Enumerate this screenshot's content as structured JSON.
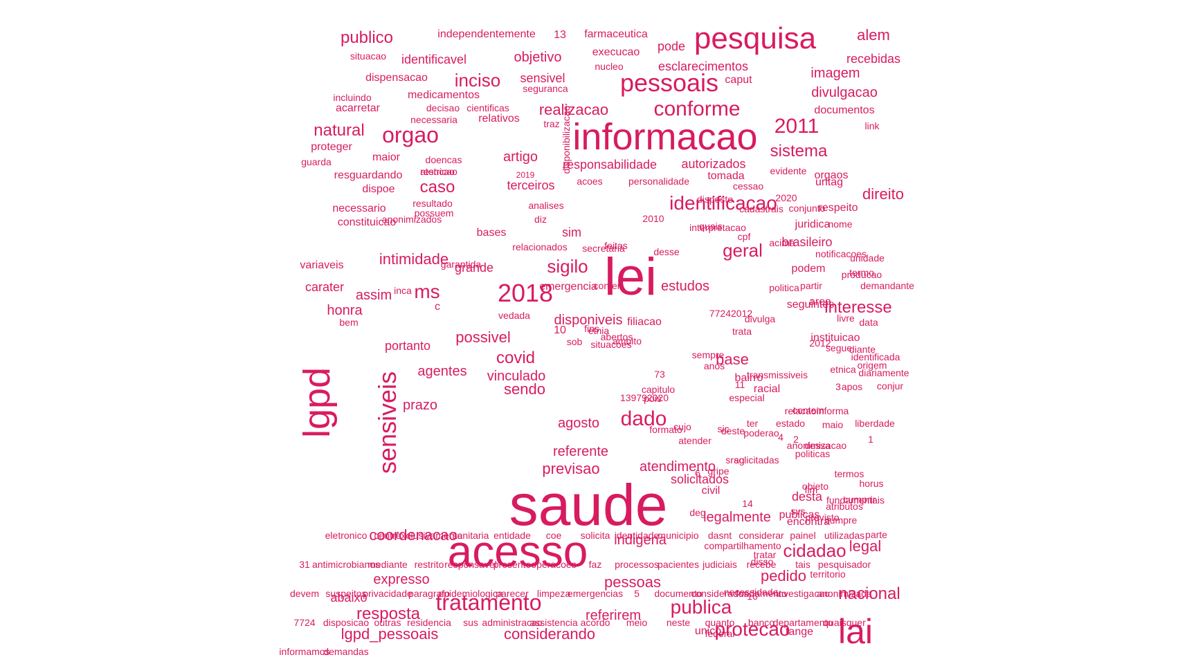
{
  "word_color": "#d81b60",
  "words": [
    "saude",
    "acesso",
    "lei",
    "informacao",
    "lai",
    "lgpd",
    "pesquisa",
    "pessoais",
    "sensiveis",
    "2018",
    "conforme",
    "2011",
    "orgao",
    "natural",
    "tratamento",
    "cidadao",
    "dado",
    "identificacao",
    "protecao",
    "publica",
    "resposta",
    "publico",
    "inciso",
    "geral",
    "sigilo",
    "ms",
    "intimidade",
    "interesse",
    "caso",
    "covid",
    "sistema",
    "direito",
    "nacional",
    "considerando",
    "lgpd_pessoais",
    "artigo",
    "alem",
    "legal",
    "base",
    "pedido",
    "realizacao",
    "agentes",
    "sendo",
    "prazo",
    "possivel",
    "atendimento",
    "coordenacao",
    "referirem",
    "previsao",
    "referente",
    "estudos",
    "honra",
    "assim",
    "disponiveis",
    "vinculado",
    "agosto",
    "pessoas",
    "indigena",
    "legalmente",
    "desta",
    "solicitados",
    "expresso",
    "abaixo",
    "portanto",
    "objetivo",
    "sensivel",
    "responsabilidade",
    "autorizados",
    "terceiros",
    "imagem",
    "divulgacao",
    "documentos",
    "recebidas",
    "identificavel",
    "execucao",
    "esclarecimentos",
    "caput",
    "independentemente",
    "farmaceutica",
    "13",
    "pode",
    "situacao",
    "dispensacao",
    "medicamentos",
    "nucleo",
    "seguranca",
    "incluindo",
    "acarretar",
    "decisao",
    "cientificas",
    "necessaria",
    "relativos",
    "traz",
    "disponibilizacao",
    "link",
    "proteger",
    "guarda",
    "maior",
    "doencas",
    "restricao",
    "atencao",
    "resguardando",
    "2019",
    "acoes",
    "personalidade",
    "tomada",
    "cessao",
    "evidente",
    "orgaos",
    "urltag",
    "dispoe",
    "resultado",
    "possuem",
    "analises",
    "disposto",
    "cadastrais",
    "2020",
    "respeito",
    "juridica",
    "conjunto",
    "necessario",
    "constituicao",
    "diz",
    "2010",
    "quais",
    "interpretacao",
    "nome",
    "acima",
    "anonimizados",
    "sim",
    "bases",
    "relacionados",
    "feitas",
    "secretaria",
    "desse",
    "cpf",
    "brasileiro",
    "notificacoes",
    "unidade",
    "producao",
    "variaveis",
    "garantida",
    "grande",
    "emergencia",
    "conter",
    "podem",
    "seguintes",
    "partir",
    "termo",
    "demandante",
    "carater",
    "bem",
    "inca",
    "c",
    "vedada",
    "77242012",
    "politica",
    "area",
    "2012",
    "instituicao",
    "divulga",
    "livre",
    "filiacao",
    "fins",
    "abertos",
    "data",
    "segue",
    "origem",
    "diariamente",
    "sob",
    "10",
    "etnia",
    "trata",
    "situacoes",
    "ambito",
    "transmissiveis",
    "73",
    "capitulo",
    "sempre",
    "diante",
    "identificada",
    "anos",
    "etnica",
    "3",
    "11",
    "apos",
    "contem",
    "relacaoinforma",
    "maio",
    "liberdade",
    "bairro",
    "racial",
    "conjur",
    "especial",
    "pois",
    "139792020",
    "poderao",
    "4",
    "formato",
    "estado",
    "1",
    "atender",
    "cujo",
    "deste",
    "ter",
    "2",
    "solicitadas",
    "sic",
    "dessa",
    "anonimizacao",
    "politicas",
    "srag",
    "gripe",
    "civil",
    "6",
    "termos",
    "horus",
    "fim",
    "objeto",
    "deg",
    "publicas",
    "encontra",
    "fundamentais",
    "cumprir",
    "14",
    "previsto",
    "svs",
    "cumpre",
    "parte",
    "compartilhamento",
    "tratar",
    "disso",
    "territorio",
    "necessidade",
    "16",
    "unico",
    "federal",
    "atributos",
    "tange",
    "eletronico",
    "centro",
    "exclusivamente",
    "sanitaria",
    "entidade",
    "coe",
    "solicita",
    "identidade",
    "municipio",
    "dasnt",
    "considerar",
    "painel",
    "utilizadas",
    "31",
    "antimicrobianos",
    "mediante",
    "restrito",
    "responsavel",
    "presente",
    "operacoes",
    "faz",
    "processos",
    "pacientes",
    "judiciais",
    "recebe",
    "tais",
    "pesquisador",
    "devem",
    "suspeitos",
    "privacidade",
    "paragrafo",
    "epidemiologica",
    "parecer",
    "limpeza",
    "emergencias",
    "5",
    "documento",
    "considerados",
    "fundamento",
    "investigacao",
    "anonimizada",
    "7724",
    "disposicao",
    "outras",
    "residencia",
    "sus",
    "administracao",
    "assistencia",
    "acordo",
    "meio",
    "neste",
    "quanto",
    "banco",
    "departamento",
    "quaisquer",
    "informamos",
    "demandas"
  ]
}
